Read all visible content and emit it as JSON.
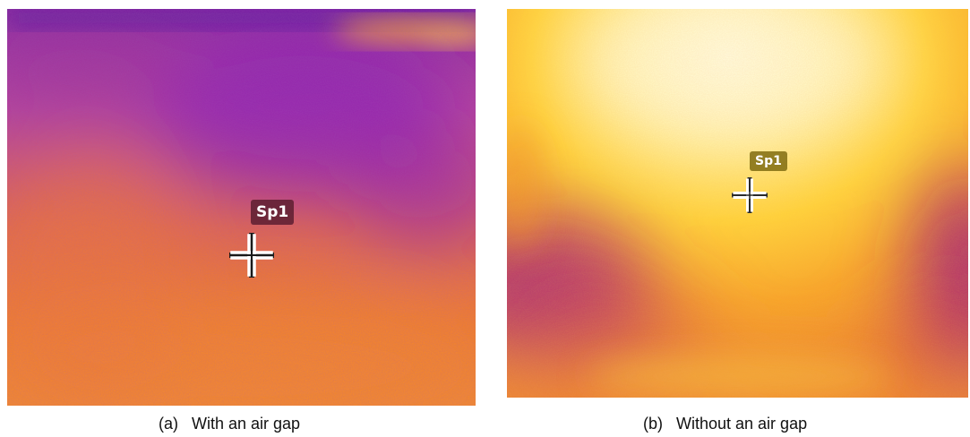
{
  "panels": [
    {
      "id": "a",
      "spot_label": "Sp1",
      "caption": "(a)   With an air gap"
    },
    {
      "id": "b",
      "spot_label": "Sp1",
      "caption": "(b)   Without an air gap"
    }
  ],
  "colors": {
    "palette": "ironbow",
    "panel_a_dominant": "#f07a2a",
    "panel_a_cool": "#9a2a9e",
    "panel_b_dominant": "#ffd84a",
    "panel_b_hot": "#fff4c8",
    "panel_b_cool": "#a4227a"
  },
  "icons": [
    "crosshair-icon"
  ]
}
